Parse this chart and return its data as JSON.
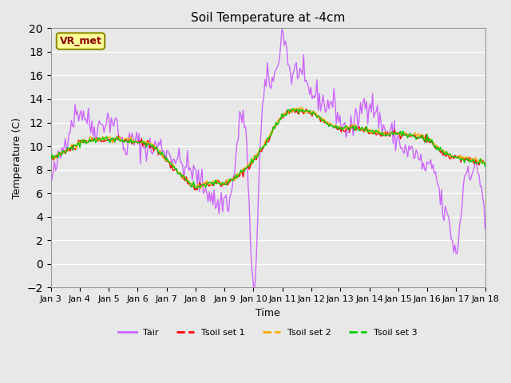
{
  "title": "Soil Temperature at -4cm",
  "xlabel": "Time",
  "ylabel": "Temperature (C)",
  "ylim": [
    -2,
    20
  ],
  "yticks": [
    -2,
    0,
    2,
    4,
    6,
    8,
    10,
    12,
    14,
    16,
    18,
    20
  ],
  "xlim": [
    0,
    15
  ],
  "xtick_labels": [
    "Jan 3",
    "Jan 4",
    "Jan 5",
    "Jan 6",
    "Jan 7",
    "Jan 8",
    "Jan 9",
    "Jan 10",
    "Jan 11",
    "Jan 12",
    "Jan 13",
    "Jan 14",
    "Jan 15",
    "Jan 16",
    "Jan 17",
    "Jan 18"
  ],
  "background_color": "#e8e8e8",
  "plot_bg_color": "#e8e8e8",
  "grid_color": "#ffffff",
  "annotation_text": "VR_met",
  "annotation_bg": "#ffff99",
  "annotation_border": "#8b8b00",
  "annotation_text_color": "#8b0000",
  "line_colors": {
    "Tair": "#cc66ff",
    "Tsoil1": "#ff0000",
    "Tsoil2": "#ffaa00",
    "Tsoil3": "#00cc00"
  },
  "legend_labels": [
    "Tair",
    "Tsoil set 1",
    "Tsoil set 2",
    "Tsoil set 3"
  ],
  "n_points": 360
}
